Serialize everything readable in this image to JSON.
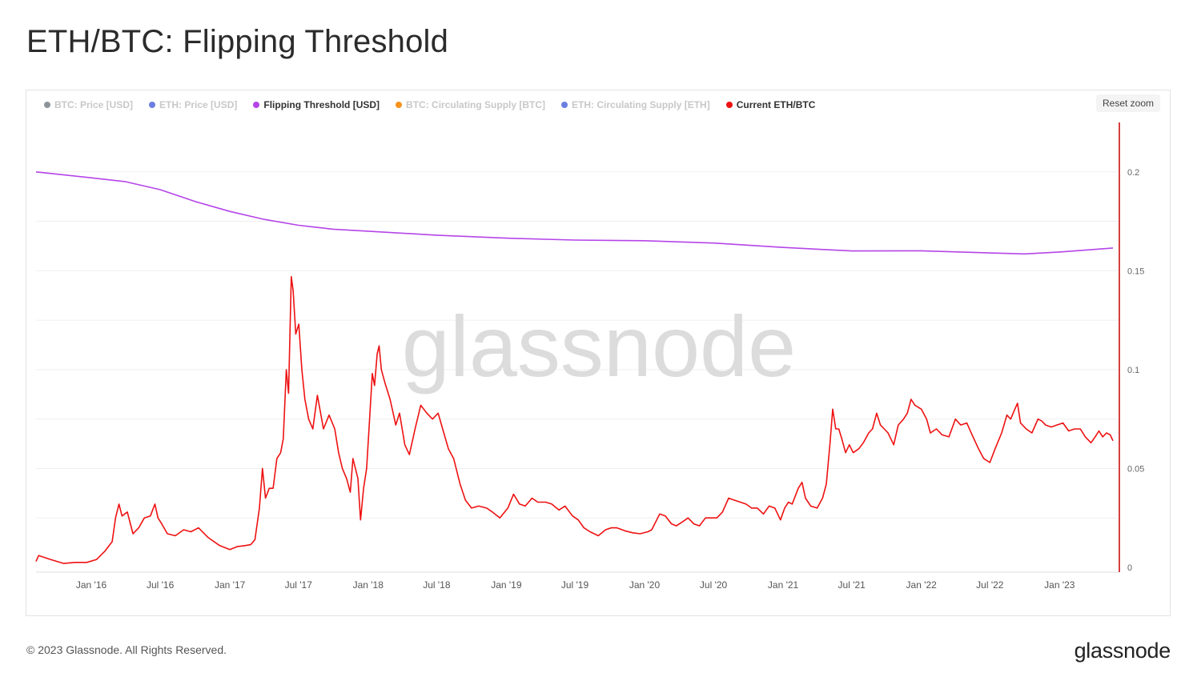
{
  "title": "ETH/BTC: Flipping Threshold",
  "reset_zoom_label": "Reset zoom",
  "watermark": "glassnode",
  "footer": {
    "copyright": "© 2023 Glassnode. All Rights Reserved.",
    "logo": "glassnode"
  },
  "legend": [
    {
      "label": "BTC: Price [USD]",
      "color": "#8c949a",
      "active": false
    },
    {
      "label": "ETH: Price [USD]",
      "color": "#6b7fe0",
      "active": false
    },
    {
      "label": "Flipping Threshold [USD]",
      "color": "#b545e8",
      "active": true
    },
    {
      "label": "BTC: Circulating Supply [BTC]",
      "color": "#f7931a",
      "active": false
    },
    {
      "label": "ETH: Circulating Supply [ETH]",
      "color": "#6b7fe0",
      "active": false
    },
    {
      "label": "Current ETH/BTC",
      "color": "#ee1111",
      "active": true
    }
  ],
  "chart_data": {
    "type": "line",
    "x_type": "date",
    "x_ticks": [
      "Jan '16",
      "Jul '16",
      "Jan '17",
      "Jul '17",
      "Jan '18",
      "Jul '18",
      "Jan '19",
      "Jul '19",
      "Jan '20",
      "Jul '20",
      "Jan '21",
      "Jul '21",
      "Jan '22",
      "Jul '22",
      "Jan '23"
    ],
    "x_range": [
      "2015-08-08",
      "2023-05-22"
    ],
    "y_ticks": [
      "0",
      "0.05",
      "0.1",
      "0.15",
      "0.2"
    ],
    "ylim": [
      0,
      0.225
    ],
    "y_axis_position": "right",
    "legend_position": "top-left",
    "grid": "horizontal",
    "series": [
      {
        "name": "Flipping Threshold [USD]",
        "color": "#b545e8",
        "points": [
          [
            "2015-08-08",
            0.2
          ],
          [
            "2016-01-01",
            0.197
          ],
          [
            "2016-04-01",
            0.195
          ],
          [
            "2016-07-01",
            0.191
          ],
          [
            "2016-10-01",
            0.185
          ],
          [
            "2017-01-01",
            0.18
          ],
          [
            "2017-04-01",
            0.176
          ],
          [
            "2017-07-01",
            0.173
          ],
          [
            "2017-10-01",
            0.171
          ],
          [
            "2018-01-01",
            0.17
          ],
          [
            "2018-07-01",
            0.168
          ],
          [
            "2019-01-01",
            0.1665
          ],
          [
            "2019-07-01",
            0.1655
          ],
          [
            "2020-01-01",
            0.1652
          ],
          [
            "2020-07-01",
            0.164
          ],
          [
            "2021-01-01",
            0.1618
          ],
          [
            "2021-07-01",
            0.16
          ],
          [
            "2022-01-01",
            0.1601
          ],
          [
            "2022-07-01",
            0.159
          ],
          [
            "2022-10-01",
            0.1585
          ],
          [
            "2023-01-01",
            0.1595
          ],
          [
            "2023-05-22",
            0.1615
          ]
        ]
      },
      {
        "name": "Current ETH/BTC",
        "color": "#ee1111",
        "points": [
          [
            "2015-08-08",
            0.003
          ],
          [
            "2015-08-15",
            0.006
          ],
          [
            "2015-09-15",
            0.004
          ],
          [
            "2015-10-20",
            0.002
          ],
          [
            "2015-11-20",
            0.0025
          ],
          [
            "2015-12-20",
            0.0025
          ],
          [
            "2016-01-15",
            0.004
          ],
          [
            "2016-02-05",
            0.008
          ],
          [
            "2016-02-25",
            0.013
          ],
          [
            "2016-03-05",
            0.025
          ],
          [
            "2016-03-14",
            0.032
          ],
          [
            "2016-03-22",
            0.026
          ],
          [
            "2016-04-05",
            0.028
          ],
          [
            "2016-04-20",
            0.017
          ],
          [
            "2016-05-05",
            0.02
          ],
          [
            "2016-05-20",
            0.025
          ],
          [
            "2016-06-05",
            0.026
          ],
          [
            "2016-06-17",
            0.032
          ],
          [
            "2016-06-25",
            0.025
          ],
          [
            "2016-07-05",
            0.022
          ],
          [
            "2016-07-20",
            0.017
          ],
          [
            "2016-08-10",
            0.016
          ],
          [
            "2016-09-01",
            0.019
          ],
          [
            "2016-09-20",
            0.018
          ],
          [
            "2016-10-10",
            0.02
          ],
          [
            "2016-11-05",
            0.015
          ],
          [
            "2016-12-05",
            0.011
          ],
          [
            "2017-01-01",
            0.009
          ],
          [
            "2017-01-20",
            0.0105
          ],
          [
            "2017-02-10",
            0.011
          ],
          [
            "2017-02-25",
            0.0115
          ],
          [
            "2017-03-08",
            0.014
          ],
          [
            "2017-03-20",
            0.03
          ],
          [
            "2017-03-28",
            0.05
          ],
          [
            "2017-04-05",
            0.035
          ],
          [
            "2017-04-15",
            0.04
          ],
          [
            "2017-04-25",
            0.04
          ],
          [
            "2017-05-05",
            0.055
          ],
          [
            "2017-05-15",
            0.058
          ],
          [
            "2017-05-22",
            0.065
          ],
          [
            "2017-05-30",
            0.1
          ],
          [
            "2017-06-05",
            0.088
          ],
          [
            "2017-06-12",
            0.147
          ],
          [
            "2017-06-17",
            0.14
          ],
          [
            "2017-06-24",
            0.118
          ],
          [
            "2017-07-02",
            0.123
          ],
          [
            "2017-07-10",
            0.1
          ],
          [
            "2017-07-18",
            0.085
          ],
          [
            "2017-07-28",
            0.075
          ],
          [
            "2017-08-08",
            0.07
          ],
          [
            "2017-08-20",
            0.087
          ],
          [
            "2017-09-05",
            0.07
          ],
          [
            "2017-09-20",
            0.077
          ],
          [
            "2017-10-05",
            0.07
          ],
          [
            "2017-10-15",
            0.058
          ],
          [
            "2017-10-25",
            0.05
          ],
          [
            "2017-11-05",
            0.045
          ],
          [
            "2017-11-15",
            0.038
          ],
          [
            "2017-11-22",
            0.055
          ],
          [
            "2017-12-05",
            0.045
          ],
          [
            "2017-12-12",
            0.024
          ],
          [
            "2017-12-20",
            0.04
          ],
          [
            "2017-12-28",
            0.05
          ],
          [
            "2018-01-05",
            0.075
          ],
          [
            "2018-01-12",
            0.098
          ],
          [
            "2018-01-18",
            0.092
          ],
          [
            "2018-01-25",
            0.108
          ],
          [
            "2018-01-30",
            0.112
          ],
          [
            "2018-02-05",
            0.1
          ],
          [
            "2018-02-15",
            0.093
          ],
          [
            "2018-02-28",
            0.085
          ],
          [
            "2018-03-15",
            0.072
          ],
          [
            "2018-03-25",
            0.078
          ],
          [
            "2018-04-08",
            0.062
          ],
          [
            "2018-04-20",
            0.057
          ],
          [
            "2018-05-05",
            0.07
          ],
          [
            "2018-05-20",
            0.082
          ],
          [
            "2018-06-05",
            0.078
          ],
          [
            "2018-06-20",
            0.075
          ],
          [
            "2018-07-05",
            0.078
          ],
          [
            "2018-07-20",
            0.068
          ],
          [
            "2018-08-01",
            0.06
          ],
          [
            "2018-08-15",
            0.055
          ],
          [
            "2018-09-01",
            0.042
          ],
          [
            "2018-09-15",
            0.034
          ],
          [
            "2018-10-01",
            0.03
          ],
          [
            "2018-10-20",
            0.031
          ],
          [
            "2018-11-10",
            0.03
          ],
          [
            "2018-11-25",
            0.028
          ],
          [
            "2018-12-15",
            0.025
          ],
          [
            "2019-01-05",
            0.03
          ],
          [
            "2019-01-20",
            0.037
          ],
          [
            "2019-02-05",
            0.032
          ],
          [
            "2019-02-20",
            0.031
          ],
          [
            "2019-03-10",
            0.035
          ],
          [
            "2019-03-25",
            0.033
          ],
          [
            "2019-04-15",
            0.033
          ],
          [
            "2019-05-01",
            0.032
          ],
          [
            "2019-05-20",
            0.029
          ],
          [
            "2019-06-05",
            0.031
          ],
          [
            "2019-06-25",
            0.026
          ],
          [
            "2019-07-10",
            0.024
          ],
          [
            "2019-07-25",
            0.02
          ],
          [
            "2019-08-10",
            0.018
          ],
          [
            "2019-09-01",
            0.016
          ],
          [
            "2019-09-20",
            0.019
          ],
          [
            "2019-10-05",
            0.02
          ],
          [
            "2019-10-20",
            0.02
          ],
          [
            "2019-11-10",
            0.0185
          ],
          [
            "2019-12-01",
            0.0175
          ],
          [
            "2019-12-20",
            0.017
          ],
          [
            "2020-01-10",
            0.018
          ],
          [
            "2020-01-20",
            0.019
          ],
          [
            "2020-02-10",
            0.027
          ],
          [
            "2020-02-25",
            0.026
          ],
          [
            "2020-03-12",
            0.022
          ],
          [
            "2020-03-25",
            0.021
          ],
          [
            "2020-04-10",
            0.023
          ],
          [
            "2020-04-25",
            0.025
          ],
          [
            "2020-05-10",
            0.022
          ],
          [
            "2020-05-25",
            0.021
          ],
          [
            "2020-06-10",
            0.025
          ],
          [
            "2020-06-25",
            0.025
          ],
          [
            "2020-07-10",
            0.025
          ],
          [
            "2020-07-25",
            0.028
          ],
          [
            "2020-08-10",
            0.035
          ],
          [
            "2020-08-25",
            0.034
          ],
          [
            "2020-09-10",
            0.033
          ],
          [
            "2020-09-25",
            0.032
          ],
          [
            "2020-10-10",
            0.03
          ],
          [
            "2020-10-25",
            0.03
          ],
          [
            "2020-11-10",
            0.027
          ],
          [
            "2020-11-25",
            0.031
          ],
          [
            "2020-12-10",
            0.03
          ],
          [
            "2020-12-25",
            0.024
          ],
          [
            "2021-01-05",
            0.03
          ],
          [
            "2021-01-15",
            0.033
          ],
          [
            "2021-01-25",
            0.032
          ],
          [
            "2021-02-10",
            0.04
          ],
          [
            "2021-02-20",
            0.043
          ],
          [
            "2021-03-01",
            0.035
          ],
          [
            "2021-03-15",
            0.031
          ],
          [
            "2021-04-01",
            0.03
          ],
          [
            "2021-04-15",
            0.035
          ],
          [
            "2021-04-25",
            0.042
          ],
          [
            "2021-05-05",
            0.063
          ],
          [
            "2021-05-12",
            0.08
          ],
          [
            "2021-05-20",
            0.07
          ],
          [
            "2021-05-28",
            0.07
          ],
          [
            "2021-06-05",
            0.065
          ],
          [
            "2021-06-15",
            0.058
          ],
          [
            "2021-06-25",
            0.062
          ],
          [
            "2021-07-05",
            0.058
          ],
          [
            "2021-07-20",
            0.06
          ],
          [
            "2021-08-01",
            0.063
          ],
          [
            "2021-08-15",
            0.068
          ],
          [
            "2021-08-25",
            0.07
          ],
          [
            "2021-09-05",
            0.078
          ],
          [
            "2021-09-15",
            0.072
          ],
          [
            "2021-09-25",
            0.07
          ],
          [
            "2021-10-05",
            0.068
          ],
          [
            "2021-10-20",
            0.062
          ],
          [
            "2021-11-01",
            0.072
          ],
          [
            "2021-11-15",
            0.075
          ],
          [
            "2021-11-25",
            0.078
          ],
          [
            "2021-12-05",
            0.085
          ],
          [
            "2021-12-15",
            0.082
          ],
          [
            "2022-01-01",
            0.08
          ],
          [
            "2022-01-15",
            0.075
          ],
          [
            "2022-01-25",
            0.068
          ],
          [
            "2022-02-10",
            0.07
          ],
          [
            "2022-02-25",
            0.067
          ],
          [
            "2022-03-15",
            0.066
          ],
          [
            "2022-04-01",
            0.075
          ],
          [
            "2022-04-15",
            0.072
          ],
          [
            "2022-05-01",
            0.073
          ],
          [
            "2022-05-15",
            0.067
          ],
          [
            "2022-06-01",
            0.06
          ],
          [
            "2022-06-15",
            0.055
          ],
          [
            "2022-07-01",
            0.053
          ],
          [
            "2022-07-15",
            0.06
          ],
          [
            "2022-08-01",
            0.068
          ],
          [
            "2022-08-15",
            0.077
          ],
          [
            "2022-08-25",
            0.075
          ],
          [
            "2022-09-05",
            0.08
          ],
          [
            "2022-09-12",
            0.083
          ],
          [
            "2022-09-20",
            0.073
          ],
          [
            "2022-10-05",
            0.07
          ],
          [
            "2022-10-20",
            0.068
          ],
          [
            "2022-11-05",
            0.075
          ],
          [
            "2022-11-15",
            0.074
          ],
          [
            "2022-11-25",
            0.072
          ],
          [
            "2022-12-10",
            0.071
          ],
          [
            "2022-12-25",
            0.072
          ],
          [
            "2023-01-10",
            0.073
          ],
          [
            "2023-01-25",
            0.069
          ],
          [
            "2023-02-10",
            0.07
          ],
          [
            "2023-02-25",
            0.07
          ],
          [
            "2023-03-10",
            0.066
          ],
          [
            "2023-03-25",
            0.063
          ],
          [
            "2023-04-05",
            0.066
          ],
          [
            "2023-04-15",
            0.069
          ],
          [
            "2023-04-25",
            0.066
          ],
          [
            "2023-05-05",
            0.068
          ],
          [
            "2023-05-15",
            0.067
          ],
          [
            "2023-05-22",
            0.064
          ]
        ]
      }
    ]
  }
}
